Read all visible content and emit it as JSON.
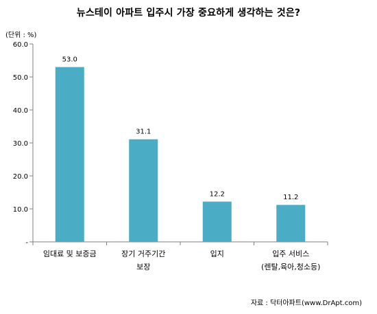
{
  "chart_data": {
    "type": "bar",
    "title": "뉴스테이 아파트 입주시 가장 중요하게 생각하는 것은?",
    "unit_label": "(단위 : %)",
    "categories": [
      [
        "임대료 및 보증금"
      ],
      [
        "장기 거주기간",
        "보장"
      ],
      [
        "입지"
      ],
      [
        "입주 서비스",
        "(렌탈,육아,청소등)"
      ]
    ],
    "values": [
      53.0,
      31.1,
      12.2,
      11.2
    ],
    "value_labels": [
      "53.0",
      "31.1",
      "12.2",
      "11.2"
    ],
    "y_ticks": [
      {
        "value": 0,
        "label": "-"
      },
      {
        "value": 10,
        "label": "10.0"
      },
      {
        "value": 20,
        "label": "20.0"
      },
      {
        "value": 30,
        "label": "30.0"
      },
      {
        "value": 40,
        "label": "40.0"
      },
      {
        "value": 50,
        "label": "50.0"
      },
      {
        "value": 60,
        "label": "60.0"
      }
    ],
    "ylim": [
      0,
      60
    ],
    "bar_color": "#4bacc6",
    "grid": false,
    "source": "자료 : 닥터아파트(www.DrApt.com)"
  }
}
